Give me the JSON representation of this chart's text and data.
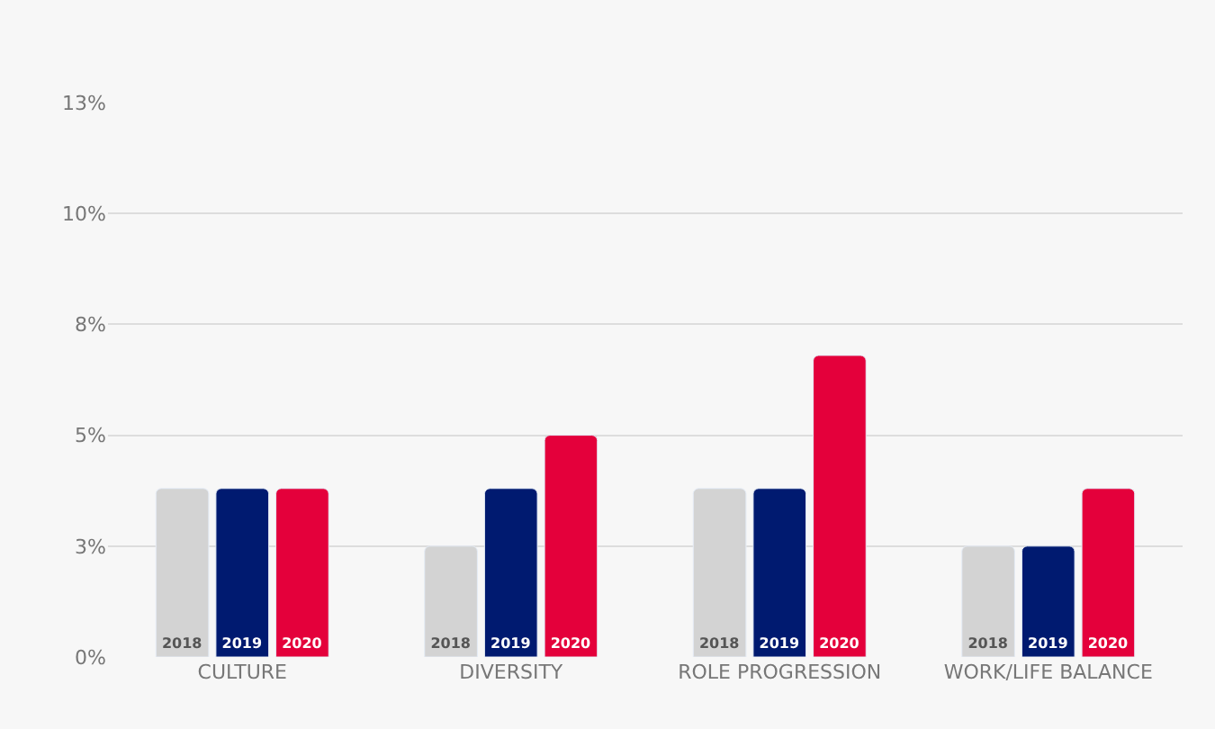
{
  "chart_data": {
    "type": "bar",
    "categories": [
      "CULTURE",
      "DIVERSITY",
      "ROLE PROGRESSION",
      "WORK/LIFE BALANCE"
    ],
    "series": [
      {
        "name": "2018",
        "color": "#d3d3d3",
        "values": [
          3.8,
          2.5,
          3.8,
          2.5
        ]
      },
      {
        "name": "2019",
        "color": "#001a70",
        "values": [
          3.8,
          3.8,
          3.8,
          2.5
        ]
      },
      {
        "name": "2020",
        "color": "#e4003b",
        "values": [
          3.8,
          5,
          6.8,
          3.8
        ]
      }
    ],
    "ylim": [
      0,
      12.5
    ],
    "yticks": [
      {
        "value": 0,
        "label": "0%"
      },
      {
        "value": 2.5,
        "label": "3%"
      },
      {
        "value": 5,
        "label": "5%"
      },
      {
        "value": 7.5,
        "label": "8%"
      },
      {
        "value": 10,
        "label": "10%"
      },
      {
        "value": 12.5,
        "label": "13%"
      }
    ],
    "grid": "y",
    "legend": false
  }
}
